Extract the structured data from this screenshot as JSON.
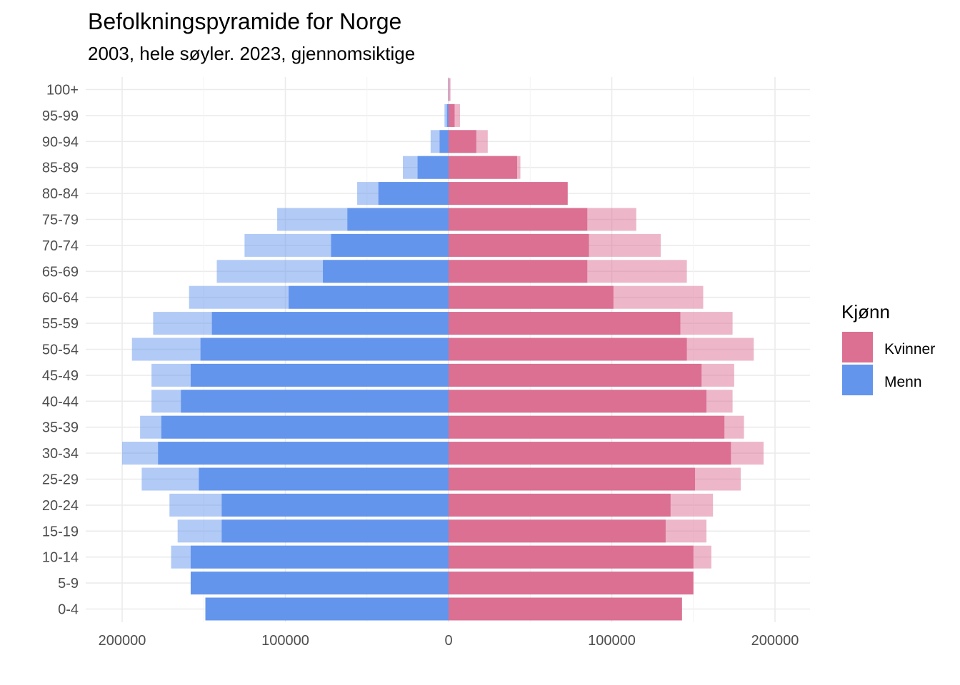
{
  "chart_data": {
    "type": "bar",
    "orientation": "horizontal",
    "title": "Befolkningspyramide for Norge",
    "subtitle": "2003, hele søyler. 2023, gjennomsiktige",
    "categories": [
      "0-4",
      "5-9",
      "10-14",
      "15-19",
      "20-24",
      "25-29",
      "30-34",
      "35-39",
      "40-44",
      "45-49",
      "50-54",
      "55-59",
      "60-64",
      "65-69",
      "70-74",
      "75-79",
      "80-84",
      "85-89",
      "90-94",
      "95-99",
      "100+"
    ],
    "x_ticks": [
      -200000,
      -100000,
      0,
      100000,
      200000
    ],
    "x_tick_labels": [
      "200000",
      "100000",
      "0",
      "100000",
      "200000"
    ],
    "xlim": [
      -220000,
      220000
    ],
    "grid": true,
    "legend": {
      "title": "Kjønn",
      "position": "right",
      "entries": [
        {
          "label": "Kvinner",
          "color": "#DB7093"
        },
        {
          "label": "Menn",
          "color": "#6495ED"
        }
      ]
    },
    "series": [
      {
        "name": "Kvinner",
        "year": "2003",
        "opacity": "full",
        "color": "#DB7093",
        "values": [
          143000,
          150000,
          150000,
          133000,
          136000,
          151000,
          173000,
          169000,
          158000,
          155000,
          146000,
          142000,
          101000,
          85000,
          86000,
          85000,
          73000,
          42000,
          17000,
          3700,
          500
        ]
      },
      {
        "name": "Menn",
        "year": "2003",
        "opacity": "full",
        "color": "#6495ED",
        "values": [
          149000,
          158000,
          158000,
          139000,
          139000,
          153000,
          178000,
          176000,
          164000,
          158000,
          152000,
          145000,
          98000,
          77000,
          72000,
          62000,
          43000,
          19000,
          5500,
          1000,
          100
        ]
      },
      {
        "name": "Kvinner",
        "year": "2023",
        "opacity": "transparent",
        "color": "#DB7093",
        "values": [
          143000,
          150000,
          161000,
          158000,
          162000,
          179000,
          193000,
          181000,
          174000,
          175000,
          187000,
          174000,
          156000,
          146000,
          130000,
          115000,
          72000,
          44000,
          24000,
          7000,
          1200
        ]
      },
      {
        "name": "Menn",
        "year": "2023",
        "opacity": "transparent",
        "color": "#6495ED",
        "values": [
          149000,
          158000,
          170000,
          166000,
          171000,
          188000,
          200000,
          189000,
          182000,
          182000,
          194000,
          181000,
          159000,
          142000,
          125000,
          105000,
          56000,
          28000,
          11000,
          2500,
          200
        ]
      }
    ]
  }
}
